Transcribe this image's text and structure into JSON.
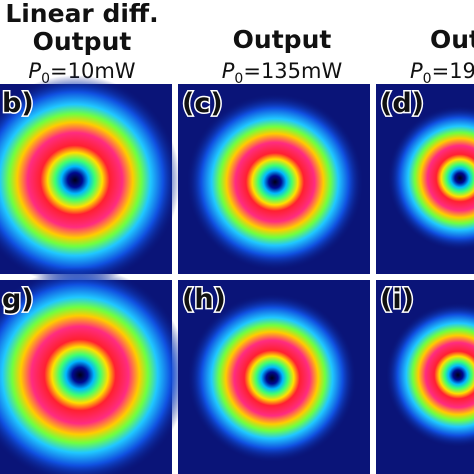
{
  "columns": [
    {
      "title_lines": [
        "Linear diff.",
        "Output"
      ],
      "power": {
        "symbol": "P",
        "subscript": "0",
        "value": "=10mW"
      }
    },
    {
      "title_lines": [
        "Output"
      ],
      "power": {
        "symbol": "P",
        "subscript": "0",
        "value": "=135mW"
      }
    },
    {
      "title_lines": [
        "Output"
      ],
      "power": {
        "symbol": "P",
        "subscript": "0",
        "value": "=19"
      }
    }
  ],
  "panels": [
    [
      "b)",
      "(c)",
      "(d)"
    ],
    [
      "g)",
      "(h)",
      "(i)"
    ]
  ]
}
